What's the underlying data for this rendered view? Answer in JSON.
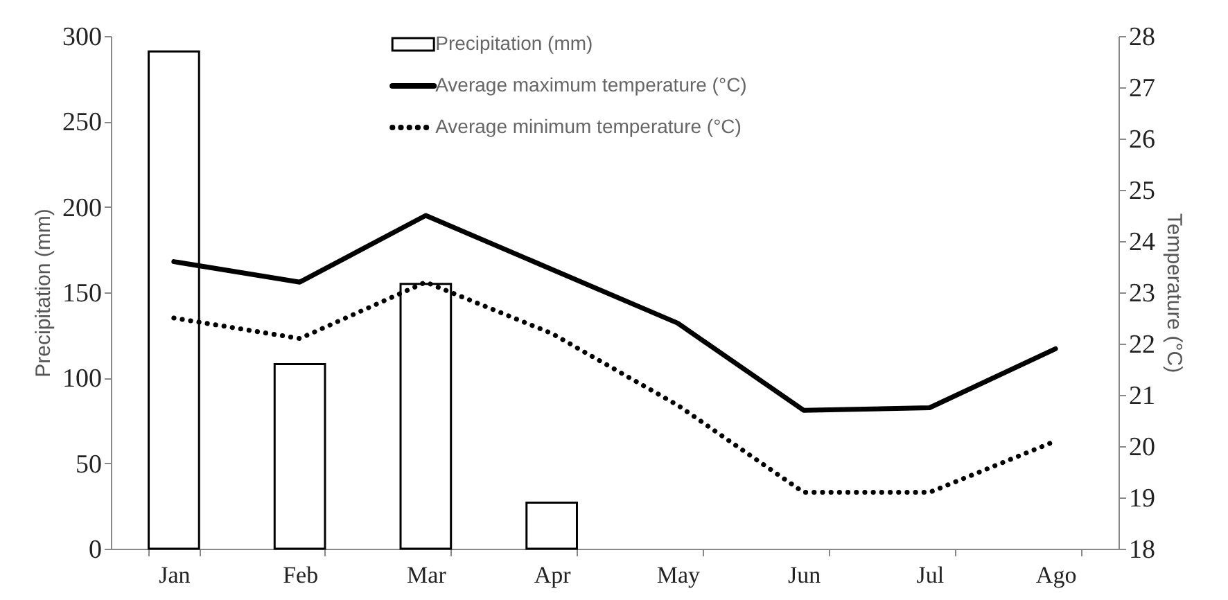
{
  "chart_data": {
    "type": "bar",
    "categories": [
      "Jan",
      "Feb",
      "Mar",
      "Apr",
      "May",
      "Jun",
      "Jul",
      "Ago"
    ],
    "ylabel": "Precipitation (mm)",
    "y2label": "Temperature (°C)",
    "ylim": [
      0,
      300
    ],
    "yticks": [
      0,
      50,
      100,
      150,
      200,
      250,
      300
    ],
    "y2lim": [
      18,
      28
    ],
    "y2ticks": [
      18,
      19,
      20,
      21,
      22,
      23,
      24,
      25,
      26,
      27,
      28
    ],
    "legend": "top",
    "grid": false,
    "series": [
      {
        "name": "Precipitation (mm)",
        "color": "#000000",
        "values": [
          291,
          108,
          155,
          27,
          null,
          null,
          null,
          null
        ]
      },
      {
        "name": "Average maximum temperature (°C)",
        "type": "line",
        "axis": "y2",
        "line_style": "solid",
        "color": "#000000",
        "values": [
          23.6,
          23.2,
          24.5,
          23.45,
          22.4,
          20.7,
          20.75,
          21.9
        ]
      },
      {
        "name": "Average minimum temperature (°C)",
        "type": "line",
        "axis": "y2",
        "line_style": "dotted",
        "color": "#000000",
        "values": [
          22.5,
          22.1,
          23.2,
          22.2,
          20.8,
          19.1,
          19.1,
          20.1
        ]
      }
    ]
  }
}
